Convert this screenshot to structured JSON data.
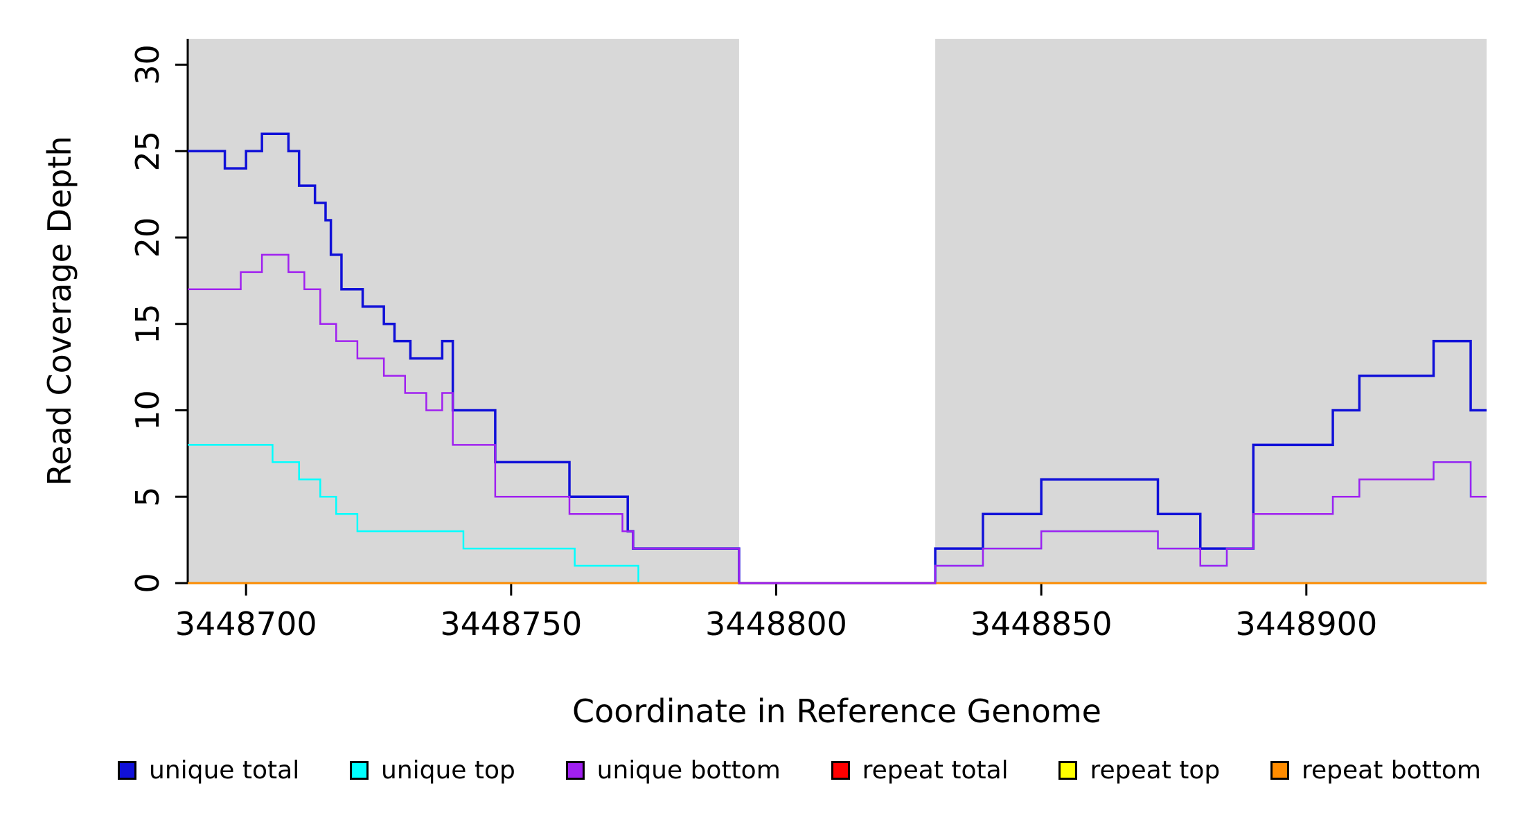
{
  "figure": {
    "title": ""
  },
  "chart_data": {
    "type": "line",
    "subtype": "step",
    "title": "",
    "xlabel": "Coordinate in Reference Genome",
    "ylabel": "Read Coverage Depth",
    "xlim": [
      3448689,
      3448934
    ],
    "ylim": [
      0,
      31.5
    ],
    "x_ticks": [
      3448700,
      3448750,
      3448800,
      3448850,
      3448900
    ],
    "y_ticks": [
      0,
      5,
      10,
      15,
      20,
      25,
      30
    ],
    "grid": false,
    "legend_position": "bottom",
    "axis_color": "#000000",
    "background_regions": [
      {
        "x0": 3448689,
        "x1": 3448793,
        "color": "#d8d8d8"
      },
      {
        "x0": 3448830,
        "x1": 3448934,
        "color": "#d8d8d8"
      }
    ],
    "series": [
      {
        "name": "unique total",
        "color": "#1010d8",
        "lw": 3.5,
        "steps": [
          [
            3448689,
            25
          ],
          [
            3448696,
            24
          ],
          [
            3448700,
            25
          ],
          [
            3448703,
            26
          ],
          [
            3448708,
            25
          ],
          [
            3448710,
            23
          ],
          [
            3448713,
            22
          ],
          [
            3448715,
            21
          ],
          [
            3448716,
            19
          ],
          [
            3448718,
            17
          ],
          [
            3448722,
            16
          ],
          [
            3448726,
            15
          ],
          [
            3448728,
            14
          ],
          [
            3448731,
            13
          ],
          [
            3448737,
            14
          ],
          [
            3448739,
            10
          ],
          [
            3448747,
            7
          ],
          [
            3448761,
            5
          ],
          [
            3448772,
            3
          ],
          [
            3448773,
            2
          ],
          [
            3448793,
            0
          ],
          [
            3448830,
            2
          ],
          [
            3448839,
            4
          ],
          [
            3448850,
            6
          ],
          [
            3448872,
            4
          ],
          [
            3448880,
            2
          ],
          [
            3448890,
            8
          ],
          [
            3448905,
            10
          ],
          [
            3448910,
            12
          ],
          [
            3448924,
            14
          ],
          [
            3448931,
            10
          ]
        ]
      },
      {
        "name": "unique top",
        "color": "#00ffff",
        "lw": 2.5,
        "steps": [
          [
            3448689,
            8
          ],
          [
            3448705,
            7
          ],
          [
            3448710,
            6
          ],
          [
            3448714,
            5
          ],
          [
            3448717,
            4
          ],
          [
            3448721,
            3
          ],
          [
            3448741,
            2
          ],
          [
            3448762,
            1
          ],
          [
            3448774,
            0
          ],
          [
            3448830,
            1
          ],
          [
            3448839,
            2
          ],
          [
            3448850,
            3
          ],
          [
            3448872,
            2
          ],
          [
            3448880,
            1
          ],
          [
            3448885,
            2
          ],
          [
            3448890,
            4
          ],
          [
            3448905,
            5
          ],
          [
            3448910,
            6
          ],
          [
            3448924,
            7
          ],
          [
            3448931,
            5
          ]
        ]
      },
      {
        "name": "unique bottom",
        "color": "#a020f0",
        "lw": 2.5,
        "steps": [
          [
            3448689,
            17
          ],
          [
            3448699,
            18
          ],
          [
            3448703,
            19
          ],
          [
            3448708,
            18
          ],
          [
            3448711,
            17
          ],
          [
            3448714,
            15
          ],
          [
            3448717,
            14
          ],
          [
            3448721,
            13
          ],
          [
            3448726,
            12
          ],
          [
            3448730,
            11
          ],
          [
            3448734,
            10
          ],
          [
            3448737,
            11
          ],
          [
            3448739,
            8
          ],
          [
            3448747,
            5
          ],
          [
            3448761,
            4
          ],
          [
            3448771,
            3
          ],
          [
            3448773,
            2
          ],
          [
            3448793,
            0
          ],
          [
            3448830,
            1
          ],
          [
            3448839,
            2
          ],
          [
            3448850,
            3
          ],
          [
            3448872,
            2
          ],
          [
            3448880,
            1
          ],
          [
            3448885,
            2
          ],
          [
            3448890,
            4
          ],
          [
            3448905,
            5
          ],
          [
            3448910,
            6
          ],
          [
            3448924,
            7
          ],
          [
            3448931,
            5
          ]
        ]
      },
      {
        "name": "repeat total",
        "color": "#ff0000",
        "lw": 2.5,
        "steps": [
          [
            3448689,
            0
          ]
        ]
      },
      {
        "name": "repeat top",
        "color": "#ffff00",
        "lw": 2.5,
        "steps": [
          [
            3448689,
            0
          ]
        ]
      },
      {
        "name": "repeat bottom",
        "color": "#ff8c00",
        "lw": 2.5,
        "steps": [
          [
            3448689,
            0
          ]
        ]
      }
    ],
    "draw_order": [
      0,
      1,
      3,
      4,
      5,
      2
    ]
  }
}
